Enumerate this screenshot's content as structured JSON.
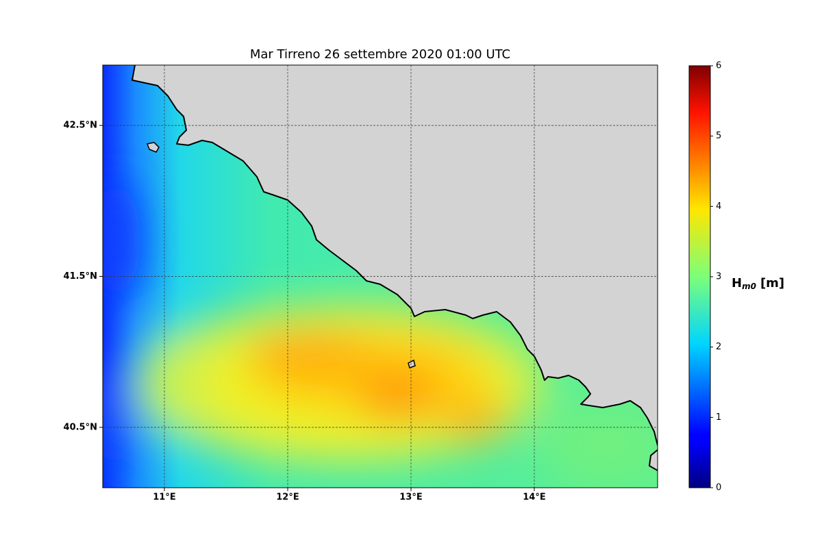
{
  "chart_data": {
    "type": "map",
    "title": "Mar Tirreno  26 settembre 2020  01:00 UTC",
    "xlim": [
      10.5,
      15.0
    ],
    "ylim": [
      40.1,
      42.9
    ],
    "xticks": [
      {
        "value": 11,
        "label": "11°E"
      },
      {
        "value": 12,
        "label": "12°E"
      },
      {
        "value": 13,
        "label": "13°E"
      },
      {
        "value": 14,
        "label": "14°E"
      }
    ],
    "yticks": [
      {
        "value": 40.5,
        "label": "40.5°N"
      },
      {
        "value": 41.5,
        "label": "41.5°N"
      },
      {
        "value": 42.5,
        "label": "42.5°N"
      }
    ],
    "grid": true,
    "colorbar": {
      "lim": [
        0,
        6
      ],
      "ticks": [
        0,
        1,
        2,
        3,
        4,
        5,
        6
      ],
      "label": {
        "main": "H",
        "sub": "m0",
        "unit": "[m]"
      },
      "colormap": "jet"
    }
  }
}
